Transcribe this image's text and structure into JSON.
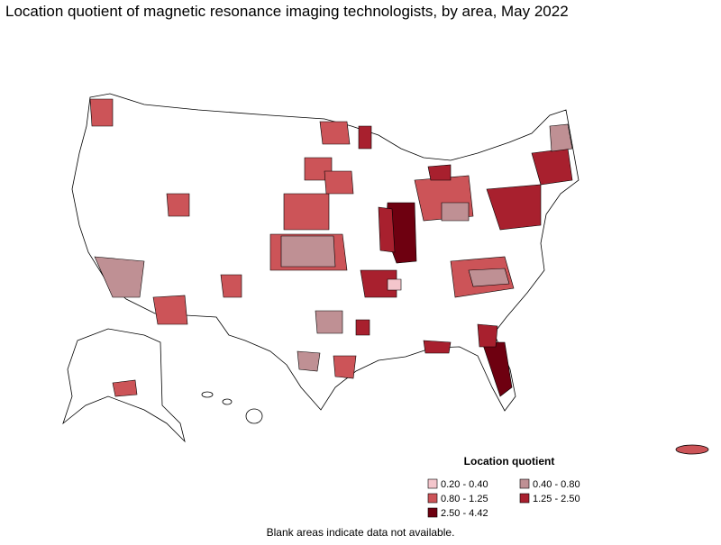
{
  "title": "Location quotient of magnetic resonance imaging technologists, by area, May 2022",
  "legend": {
    "title": "Location quotient",
    "items": [
      {
        "label": "0.20 - 0.40",
        "color": "#f4c6cc"
      },
      {
        "label": "0.40 - 0.80",
        "color": "#bf9094"
      },
      {
        "label": "0.80 - 1.25",
        "color": "#cc5458"
      },
      {
        "label": "1.25 - 2.50",
        "color": "#a8202e"
      },
      {
        "label": "2.50 - 4.42",
        "color": "#6e0010"
      }
    ]
  },
  "footnote": "Blank areas indicate data not available."
}
